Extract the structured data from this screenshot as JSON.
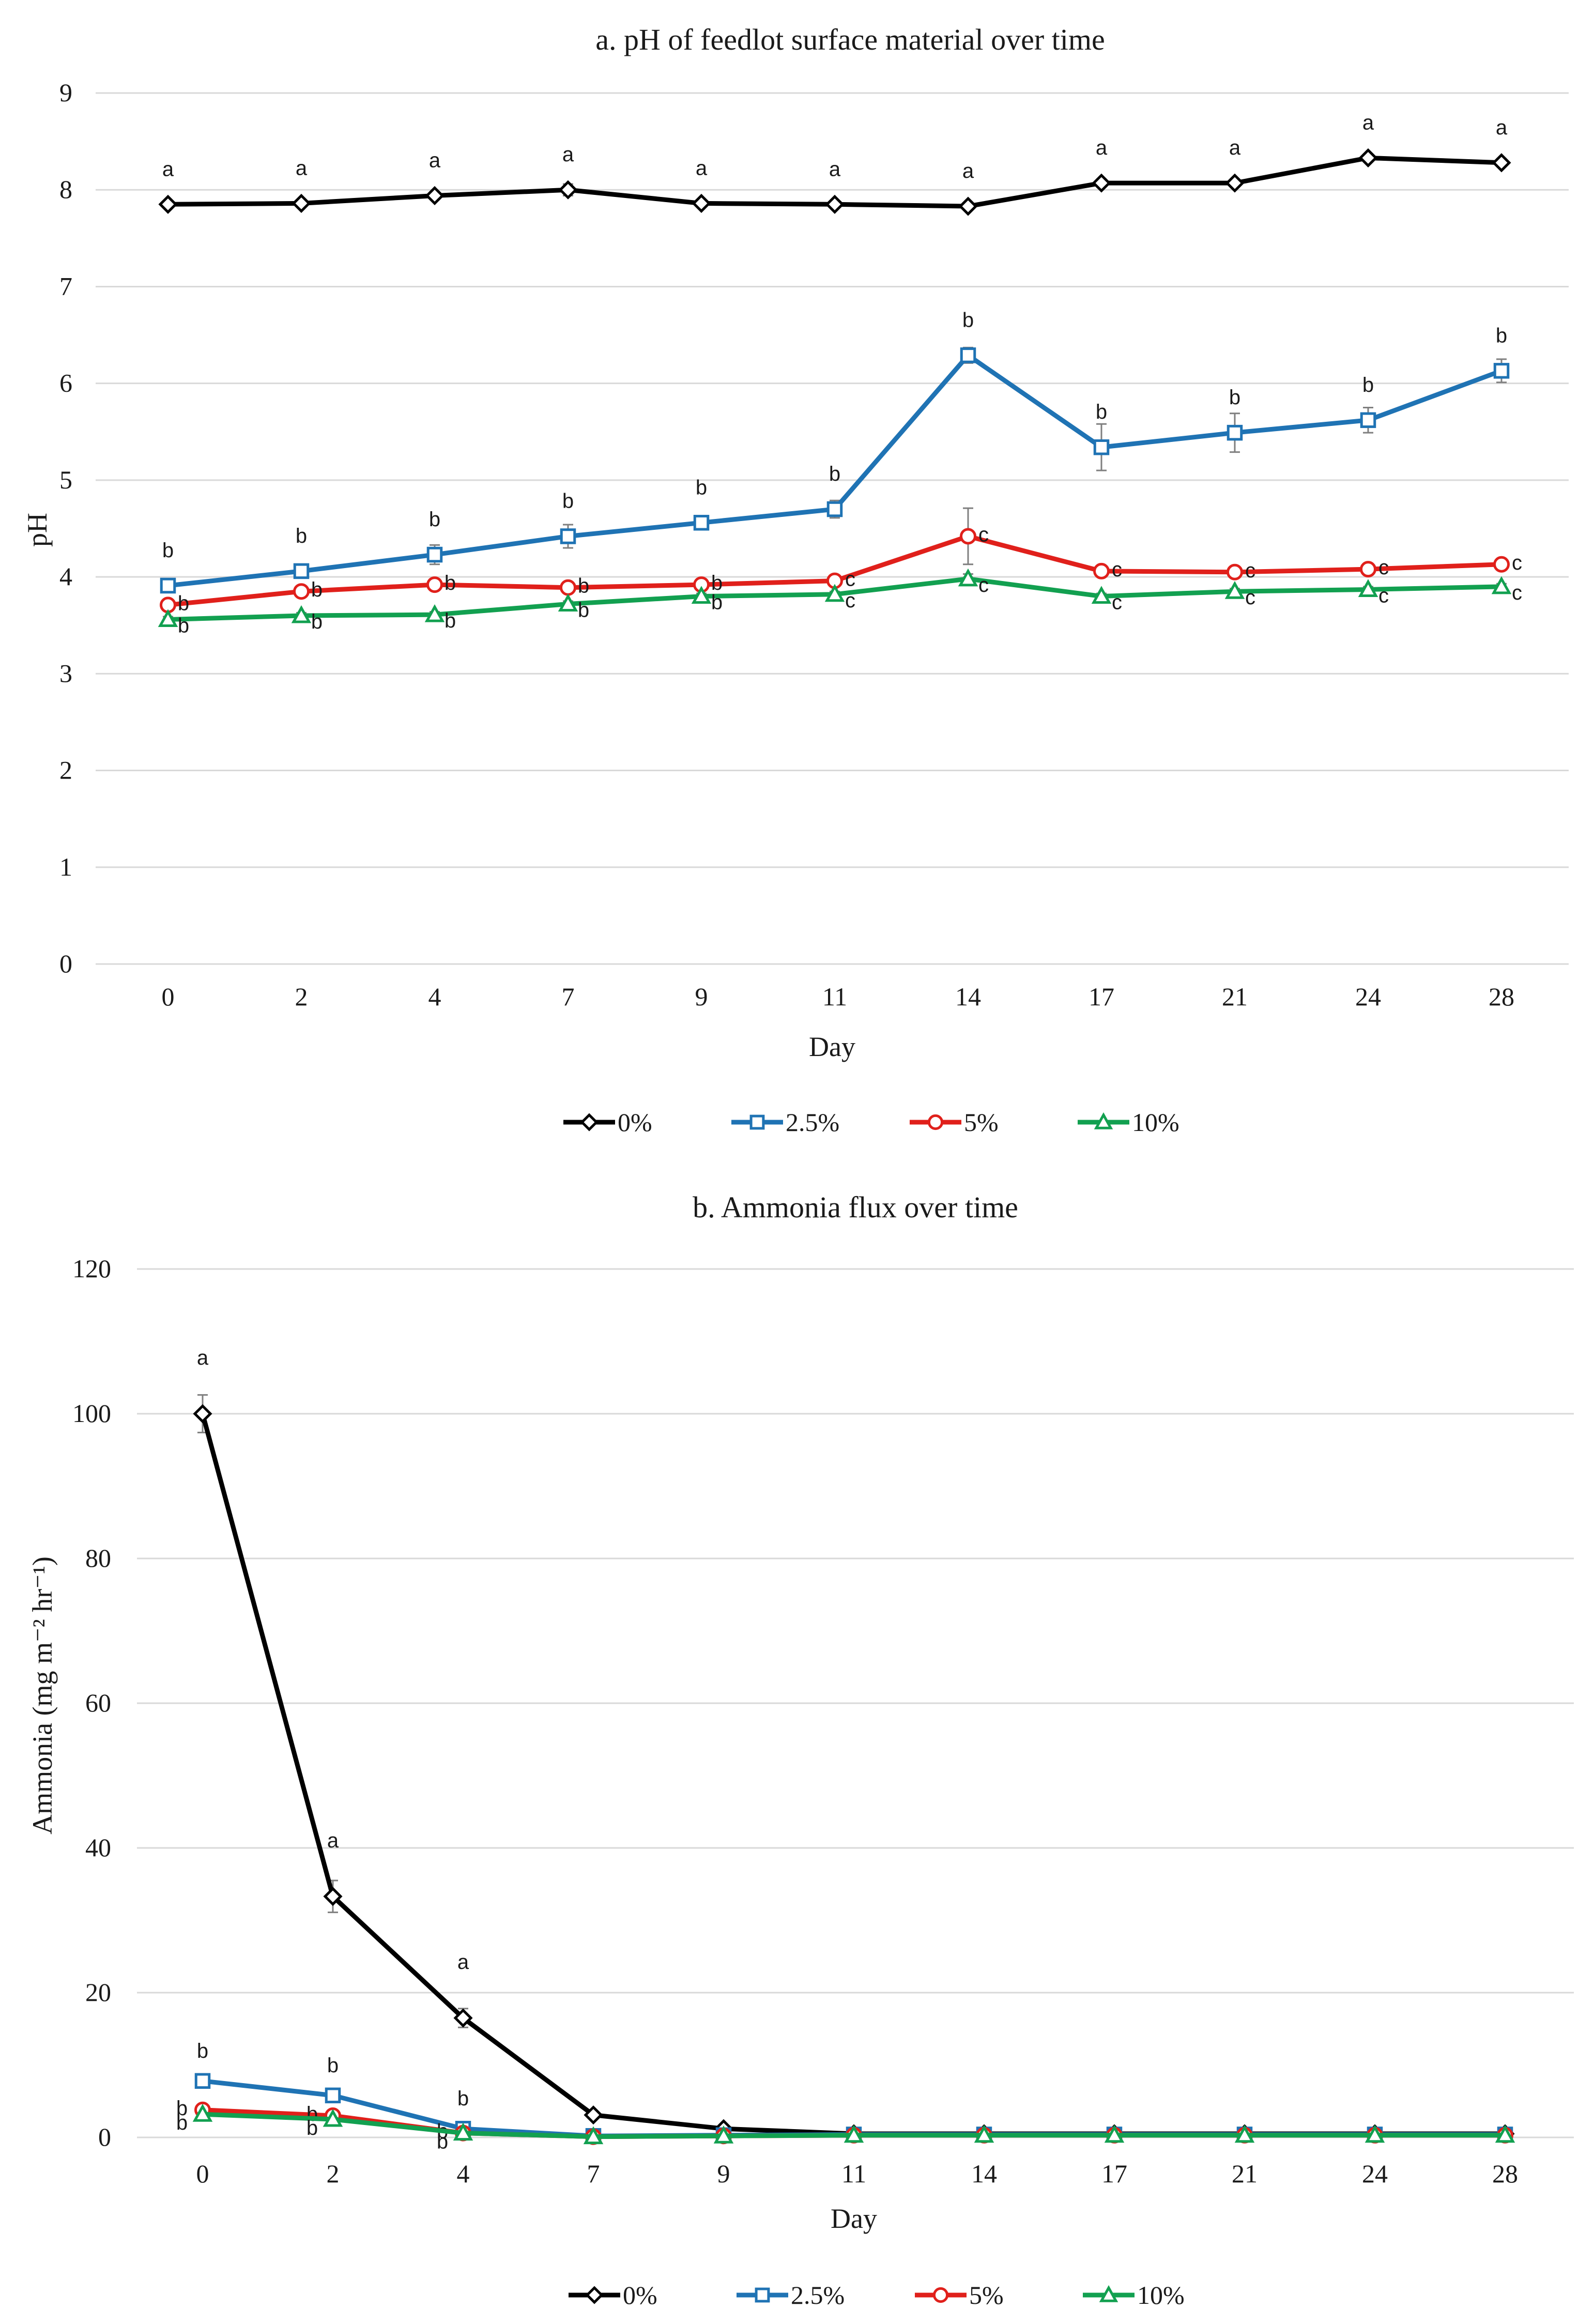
{
  "chart_data": [
    {
      "id": "a",
      "type": "line",
      "title": "a. pH of feedlot surface material over time",
      "xlabel": "Day",
      "ylabel": "pH",
      "categories": [
        "0",
        "2",
        "4",
        "7",
        "9",
        "11",
        "14",
        "17",
        "21",
        "24",
        "28"
      ],
      "ylim": [
        0,
        9
      ],
      "yticks": [
        "0",
        "1",
        "2",
        "3",
        "4",
        "5",
        "6",
        "7",
        "8",
        "9"
      ],
      "grid": true,
      "legend_position": "bottom",
      "series": [
        {
          "name": "0%",
          "color": "#000000",
          "marker": "diamond",
          "values": [
            7.85,
            7.86,
            7.94,
            8.0,
            7.86,
            7.85,
            7.83,
            8.07,
            8.07,
            8.33,
            8.28
          ],
          "errors": [
            0.03,
            0.03,
            0.04,
            0.06,
            0.03,
            0.03,
            0.03,
            0.04,
            0.04,
            0.04,
            0.04
          ],
          "labels": [
            "a",
            "a",
            "a",
            "a",
            "a",
            "a",
            "a",
            "a",
            "a",
            "a",
            "a"
          ]
        },
        {
          "name": "2.5%",
          "color": "#1f73b4",
          "marker": "square",
          "values": [
            3.91,
            4.06,
            4.23,
            4.42,
            4.56,
            4.7,
            6.29,
            5.34,
            5.49,
            5.62,
            6.13
          ],
          "errors": [
            0.04,
            0.04,
            0.1,
            0.12,
            0.05,
            0.09,
            0.08,
            0.24,
            0.2,
            0.13,
            0.12
          ],
          "labels": [
            "b",
            "b",
            "b",
            "b",
            "b",
            "b",
            "b",
            "b",
            "b",
            "b",
            "b"
          ]
        },
        {
          "name": "5%",
          "color": "#e0201b",
          "marker": "circle",
          "values": [
            3.71,
            3.85,
            3.92,
            3.89,
            3.92,
            3.96,
            4.42,
            4.06,
            4.05,
            4.08,
            4.13
          ],
          "errors": [
            0.03,
            0.04,
            0.04,
            0.04,
            0.04,
            0.05,
            0.29,
            0.04,
            0.03,
            0.04,
            0.04
          ],
          "labels": [
            "b",
            "b",
            "b",
            "b",
            "b",
            "c",
            "c",
            "c",
            "c",
            "c",
            "c"
          ]
        },
        {
          "name": "10%",
          "color": "#12a050",
          "marker": "triangle",
          "values": [
            3.56,
            3.6,
            3.61,
            3.72,
            3.8,
            3.82,
            3.98,
            3.8,
            3.85,
            3.87,
            3.9
          ],
          "errors": [
            0.03,
            0.03,
            0.03,
            0.03,
            0.03,
            0.03,
            0.05,
            0.03,
            0.03,
            0.03,
            0.03
          ],
          "labels": [
            "b",
            "b",
            "b",
            "b",
            "b",
            "c",
            "c",
            "c",
            "c",
            "c",
            "c"
          ]
        }
      ]
    },
    {
      "id": "b",
      "type": "line",
      "title": "b. Ammonia flux over time",
      "xlabel": "Day",
      "ylabel": "Ammonia (mg m⁻² hr⁻¹)",
      "categories": [
        "0",
        "2",
        "4",
        "7",
        "9",
        "11",
        "14",
        "17",
        "21",
        "24",
        "28"
      ],
      "ylim": [
        0,
        120
      ],
      "yticks": [
        "0",
        "20",
        "40",
        "60",
        "80",
        "100",
        "120"
      ],
      "grid": true,
      "legend_position": "bottom",
      "series": [
        {
          "name": "0%",
          "color": "#000000",
          "marker": "diamond",
          "values": [
            100,
            33.3,
            16.5,
            3.1,
            1.2,
            0.5,
            0.5,
            0.5,
            0.5,
            0.5,
            0.5
          ],
          "errors": [
            2.6,
            2.2,
            1.3,
            0.4,
            0.2,
            0,
            0,
            0,
            0,
            0,
            0
          ],
          "labels": [
            "a",
            "a",
            "a",
            "",
            "",
            "",
            "",
            "",
            "",
            "",
            ""
          ]
        },
        {
          "name": "2.5%",
          "color": "#1f73b4",
          "marker": "square",
          "values": [
            7.8,
            5.8,
            1.2,
            0.2,
            0.3,
            0.4,
            0.4,
            0.4,
            0.4,
            0.4,
            0.4
          ],
          "errors": [
            0.5,
            0.5,
            0.3,
            0,
            0,
            0,
            0,
            0,
            0,
            0,
            0
          ],
          "labels": [
            "b",
            "b",
            "b",
            "",
            "",
            "",
            "",
            "",
            "",
            "",
            ""
          ]
        },
        {
          "name": "5%",
          "color": "#e0201b",
          "marker": "circle",
          "values": [
            3.8,
            3.0,
            0.6,
            0.1,
            0.2,
            0.3,
            0.3,
            0.3,
            0.3,
            0.3,
            0.3
          ],
          "errors": [
            0.3,
            0.3,
            0.1,
            0,
            0,
            0,
            0,
            0,
            0,
            0,
            0
          ],
          "labels": [
            "b",
            "b",
            "b",
            "",
            "",
            "",
            "",
            "",
            "",
            "",
            ""
          ]
        },
        {
          "name": "10%",
          "color": "#12a050",
          "marker": "triangle",
          "values": [
            3.2,
            2.5,
            0.6,
            0.1,
            0.2,
            0.3,
            0.3,
            0.3,
            0.3,
            0.3,
            0.3
          ],
          "errors": [
            0.2,
            0.2,
            0.1,
            0,
            0,
            0,
            0,
            0,
            0,
            0,
            0
          ],
          "labels": [
            "b",
            "b",
            "b",
            "",
            "",
            "",
            "",
            "",
            "",
            "",
            ""
          ]
        }
      ]
    }
  ]
}
